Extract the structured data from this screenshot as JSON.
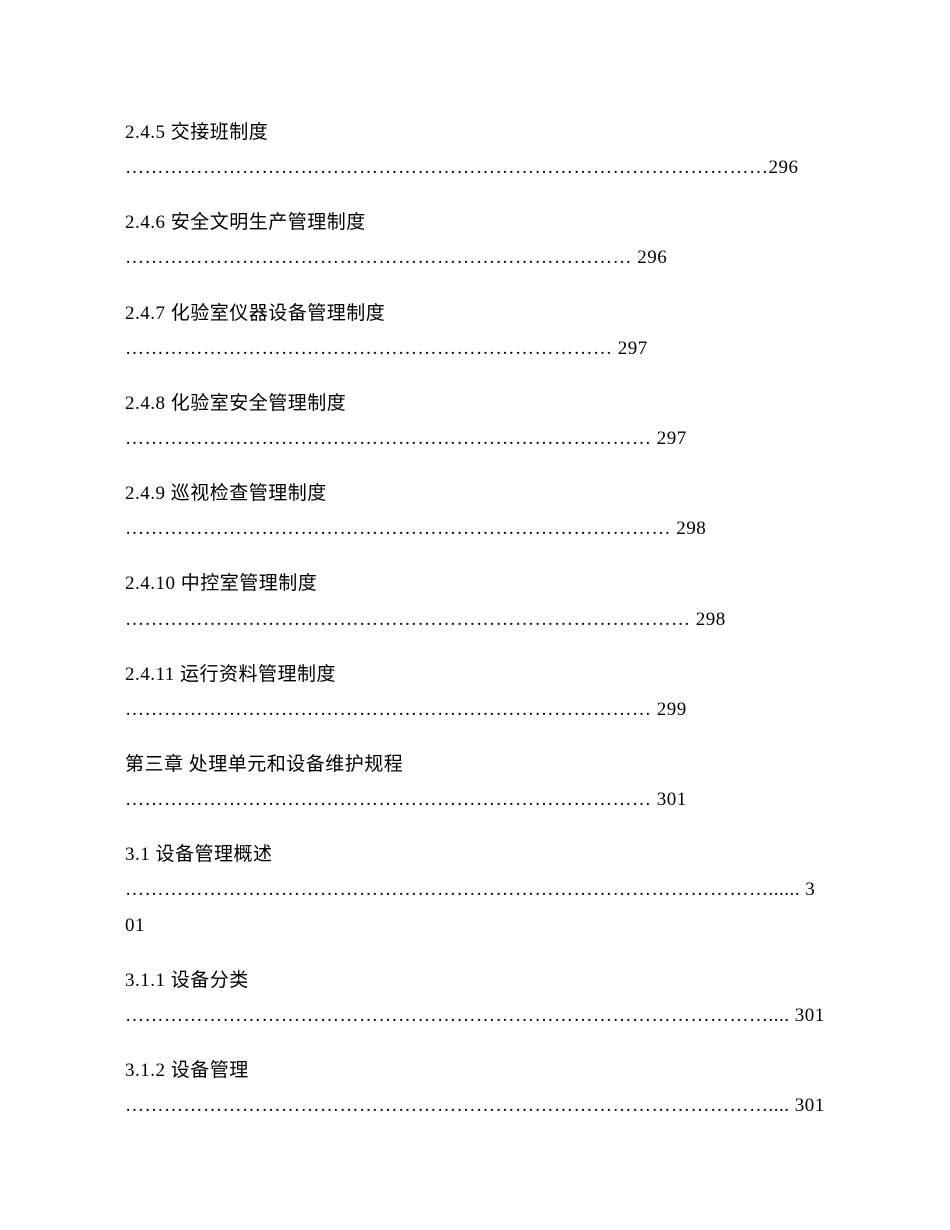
{
  "toc": {
    "entries": [
      {
        "title": "2.4.5 交接班制度",
        "dots": "………………………………………………………………………………………",
        "page": "296",
        "wrap": true
      },
      {
        "title": "2.4.6 安全文明生产管理制度",
        "dots": "…………………………………………………………………… ",
        "page": "296",
        "wrap": false
      },
      {
        "title": "2.4.7 化验室仪器设备管理制度",
        "dots": "………………………………………………………………… ",
        "page": "297",
        "wrap": false
      },
      {
        "title": "2.4.8 化验室安全管理制度",
        "dots": "……………………………………………………………………… ",
        "page": "297",
        "wrap": false
      },
      {
        "title": "2.4.9 巡视检查管理制度",
        "dots": "………………………………………………………………………… ",
        "page": "298",
        "wrap": false
      },
      {
        "title": "2.4.10 中控室管理制度",
        "dots": "…………………………………………………………………………… ",
        "page": "298",
        "wrap": false
      },
      {
        "title": "2.4.11 运行资料管理制度",
        "dots": "……………………………………………………………………… ",
        "page": "299",
        "wrap": false
      },
      {
        "title": "第三章 处理单元和设备维护规程",
        "dots": "……………………………………………………………………… ",
        "page": "301",
        "wrap": false
      },
      {
        "title": "3.1 设备管理概述",
        "dots": "………………………………………………………………………………………...... ",
        "page": "301",
        "wrap": true
      },
      {
        "title": "3.1.1 设备分类",
        "dots": "……………………………………………………………………………………….... ",
        "page": "301",
        "wrap": true
      },
      {
        "title": "3.1.2 设备管理",
        "dots": "……………………………………………………………………………………….... ",
        "page": "301",
        "wrap": true
      }
    ]
  },
  "colors": {
    "background": "#ffffff",
    "text": "#000000"
  },
  "typography": {
    "font_family": "SimSun",
    "font_size_pt": 14,
    "line_height": 1.85
  }
}
